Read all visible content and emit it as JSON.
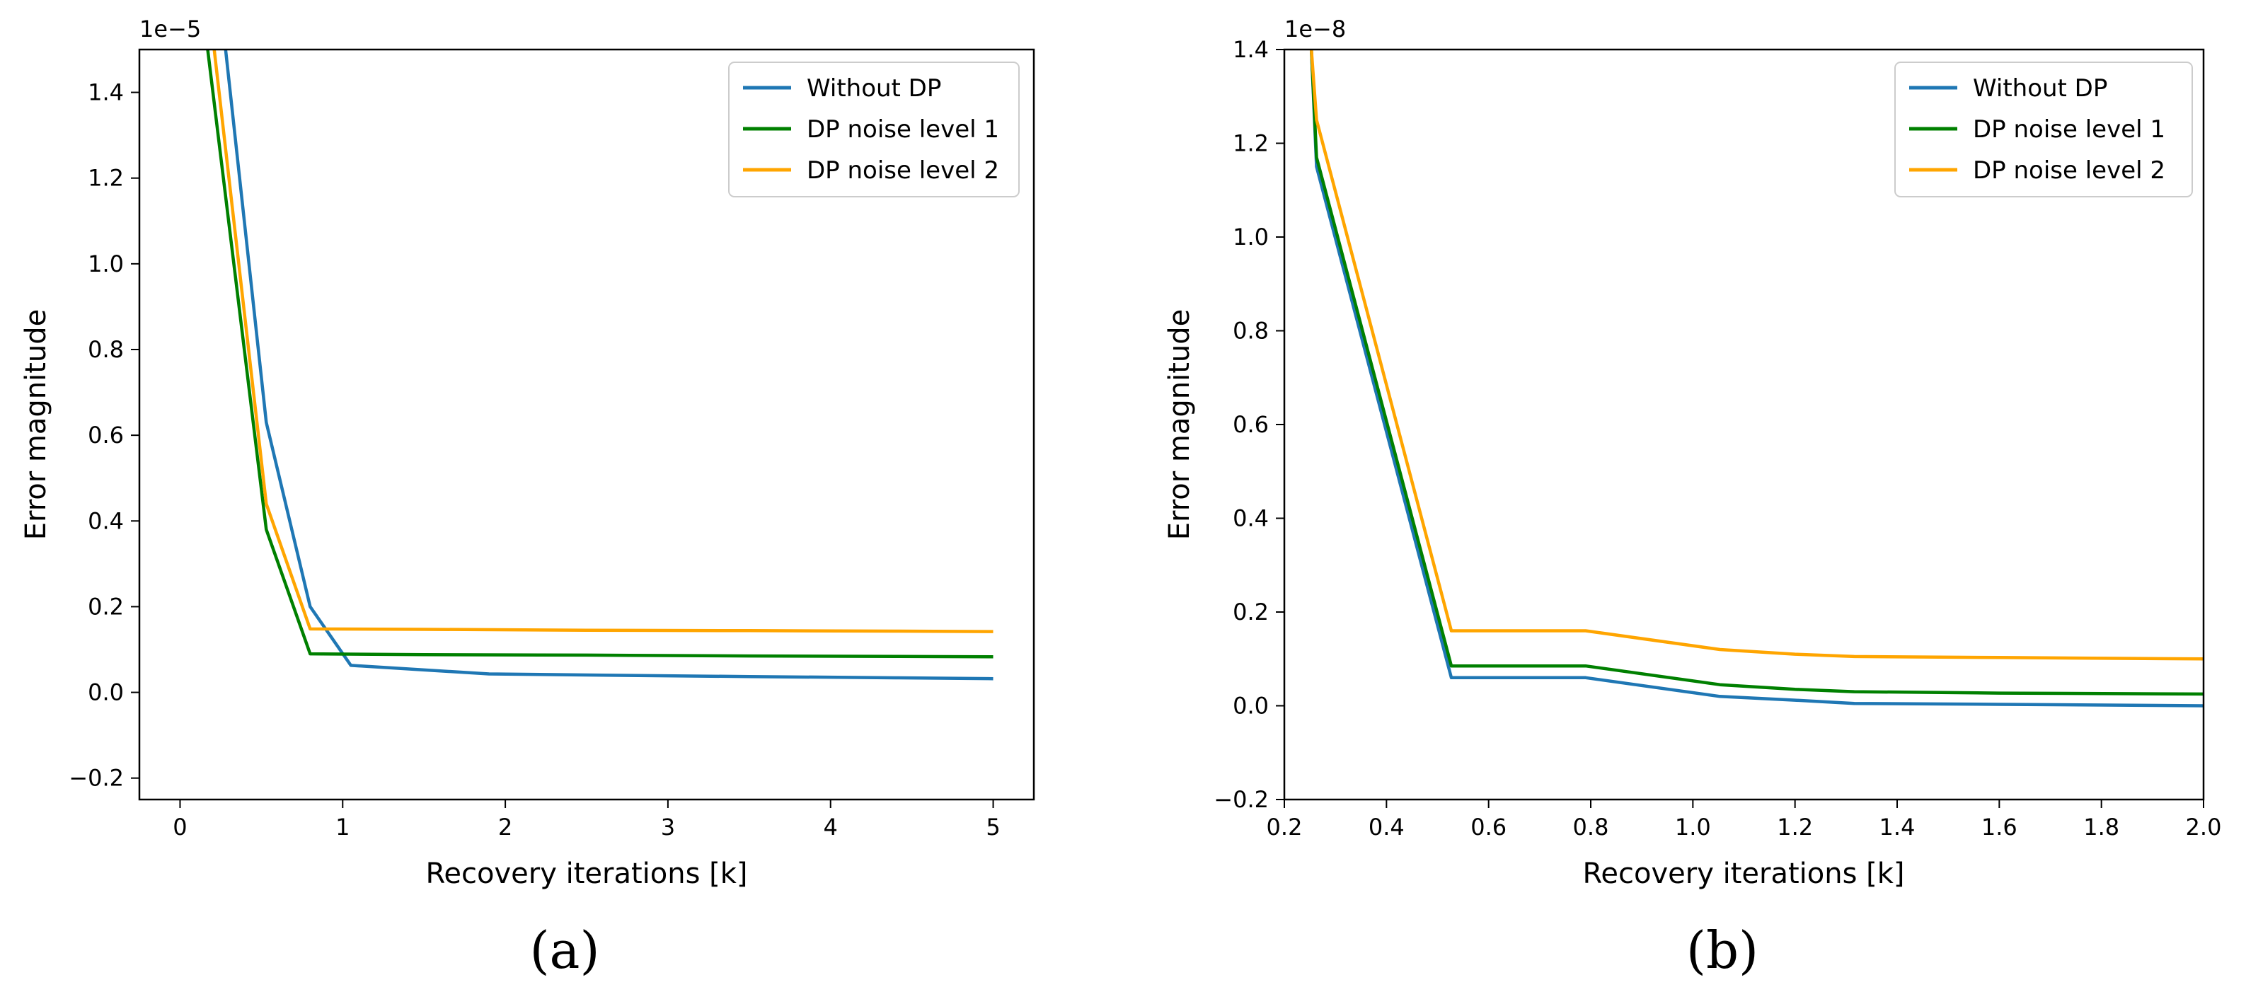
{
  "chart_data": [
    {
      "type": "line",
      "panel_label": "(a)",
      "xlabel": "Recovery iterations [k]",
      "ylabel": "Error magnitude",
      "y_offset_label": "1e−5",
      "xlim": [
        -0.25,
        5.25
      ],
      "ylim": [
        -0.25,
        1.5
      ],
      "x_ticks": [
        0,
        1,
        2,
        3,
        4,
        5
      ],
      "y_ticks": [
        -0.2,
        0.0,
        0.2,
        0.4,
        0.6,
        0.8,
        1.0,
        1.2,
        1.4
      ],
      "legend_position": "top-right",
      "series": [
        {
          "name": "Without DP",
          "color": "#1f77b4",
          "x": [
            0.28,
            0.53,
            0.8,
            1.05,
            1.9,
            2.6,
            3.5,
            4.4,
            5.0
          ],
          "y": [
            1.5,
            0.63,
            0.2,
            0.063,
            0.043,
            0.04,
            0.037,
            0.034,
            0.032
          ]
        },
        {
          "name": "DP noise level 1",
          "color": "#008000",
          "x": [
            0.17,
            0.53,
            0.8,
            1.5,
            2.5,
            3.5,
            4.4,
            5.0
          ],
          "y": [
            1.5,
            0.38,
            0.09,
            0.088,
            0.087,
            0.085,
            0.084,
            0.083
          ]
        },
        {
          "name": "DP noise level 2",
          "color": "#ffa500",
          "x": [
            0.21,
            0.53,
            0.8,
            1.5,
            2.5,
            3.5,
            4.4,
            5.0
          ],
          "y": [
            1.5,
            0.44,
            0.148,
            0.147,
            0.145,
            0.144,
            0.143,
            0.142
          ]
        }
      ]
    },
    {
      "type": "line",
      "panel_label": "(b)",
      "xlabel": "Recovery iterations [k]",
      "ylabel": "Error magnitude",
      "y_offset_label": "1e−8",
      "xlim": [
        0.2,
        2.0
      ],
      "ylim": [
        -0.2,
        1.4
      ],
      "x_ticks": [
        0.2,
        0.4,
        0.6,
        0.8,
        1.0,
        1.2,
        1.4,
        1.6,
        1.8,
        2.0
      ],
      "x_tick_labels": [
        "0.2",
        "0.4",
        "0.6",
        "0.8",
        "1.0",
        "1.2",
        "1.4",
        "1.6",
        "1.8",
        "2.0"
      ],
      "y_ticks": [
        -0.2,
        0.0,
        0.2,
        0.4,
        0.6,
        0.8,
        1.0,
        1.2,
        1.4
      ],
      "legend_position": "top-right",
      "series": [
        {
          "name": "Without DP",
          "color": "#1f77b4",
          "x": [
            0.253,
            0.263,
            0.527,
            0.79,
            1.053,
            1.2,
            1.316,
            1.6,
            2.0
          ],
          "y": [
            1.4,
            1.15,
            0.06,
            0.06,
            0.02,
            0.012,
            0.005,
            0.003,
            0.0
          ]
        },
        {
          "name": "DP noise level 1",
          "color": "#008000",
          "x": [
            0.253,
            0.263,
            0.527,
            0.79,
            1.053,
            1.2,
            1.316,
            1.6,
            2.0
          ],
          "y": [
            1.4,
            1.17,
            0.085,
            0.085,
            0.045,
            0.035,
            0.03,
            0.027,
            0.025
          ]
        },
        {
          "name": "DP noise level 2",
          "color": "#ffa500",
          "x": [
            0.253,
            0.263,
            0.527,
            0.79,
            1.053,
            1.2,
            1.316,
            1.6,
            2.0
          ],
          "y": [
            1.4,
            1.25,
            0.16,
            0.16,
            0.12,
            0.11,
            0.105,
            0.103,
            0.1
          ]
        }
      ]
    }
  ]
}
